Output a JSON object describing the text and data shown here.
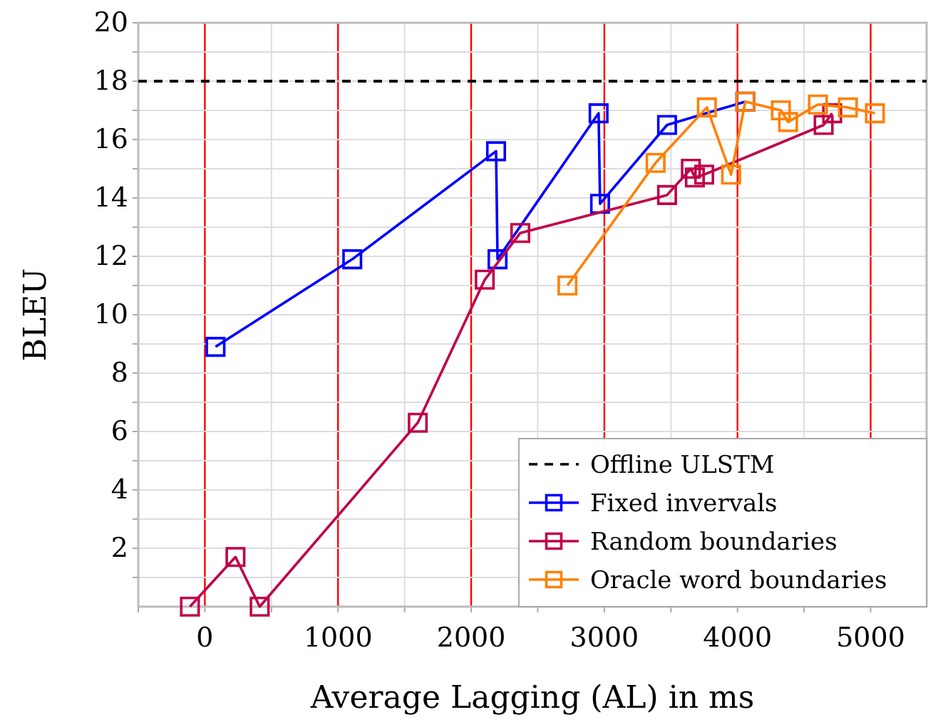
{
  "chart_data": {
    "type": "line",
    "xlabel": "Average Lagging (AL) in ms",
    "ylabel": "BLEU",
    "xlim": [
      -500,
      5420
    ],
    "ylim": [
      0,
      20
    ],
    "xticks": [
      {
        "value": -500,
        "label": null
      },
      0,
      {
        "value": 500,
        "label": null
      },
      1000,
      {
        "value": 1500,
        "label": null
      },
      2000,
      {
        "value": 2500,
        "label": null
      },
      3000,
      {
        "value": 3500,
        "label": null
      },
      4000,
      {
        "value": 4500,
        "label": null
      },
      5000
    ],
    "yticks": [
      {
        "value": 1,
        "label": null
      },
      2,
      {
        "value": 3,
        "label": null
      },
      4,
      {
        "value": 5,
        "label": null
      },
      6,
      {
        "value": 7,
        "label": null
      },
      8,
      {
        "value": 9,
        "label": null
      },
      10,
      {
        "value": 11,
        "label": null
      },
      12,
      {
        "value": 13,
        "label": null
      },
      14,
      {
        "value": 15,
        "label": null
      },
      16,
      {
        "value": 17,
        "label": null
      },
      18,
      {
        "value": 19,
        "label": null
      },
      20
    ],
    "grid": true,
    "legend": "bottom right",
    "marker": "square",
    "series": [
      {
        "name": "Offline ULSTM",
        "color": "#000000",
        "x": [
          -500,
          5420
        ],
        "values": [
          18,
          18
        ],
        "line_style": "dashed",
        "marker": "none"
      },
      {
        "name": "Fixed invervals",
        "color": "#0000ff",
        "x": [
          80,
          1107,
          2187,
          2198,
          2957,
          2968,
          3471,
          4059
        ],
        "values": [
          8.9,
          11.9,
          15.6,
          11.9,
          16.9,
          13.8,
          16.5,
          17.3
        ]
      },
      {
        "name": "Random boundaries",
        "color": "#c0004a",
        "x": [
          -112,
          230,
          412,
          1599,
          2102,
          2369,
          3471,
          3650,
          3680,
          3750,
          4647,
          4711
        ],
        "values": [
          0,
          1.7,
          0,
          6.3,
          11.2,
          12.8,
          14.1,
          15.0,
          14.7,
          14.8,
          16.5,
          16.9
        ]
      },
      {
        "name": "Oracle word boundaries",
        "color": "#ff8000",
        "x": [
          2723,
          3385,
          3770,
          3952,
          4059,
          4326,
          4380,
          4604,
          4829,
          5032
        ],
        "values": [
          11,
          15.2,
          17.1,
          14.8,
          17.3,
          17.0,
          16.6,
          17.2,
          17.1,
          16.9
        ]
      }
    ]
  }
}
